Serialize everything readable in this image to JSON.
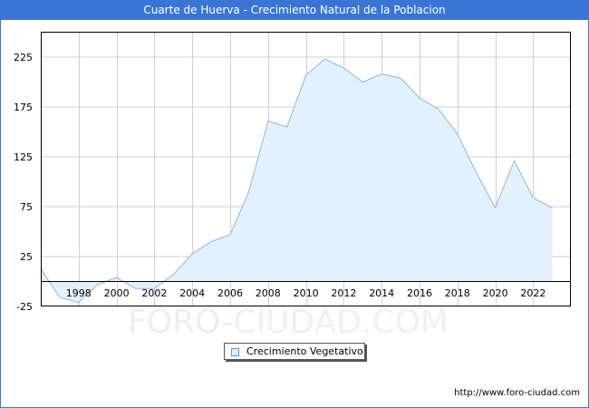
{
  "header": {
    "title": "Cuarte de Huerva - Crecimiento Natural de la Poblacion"
  },
  "legend": {
    "label": "Crecimiento Vegetativo"
  },
  "source": {
    "url_text": "http://www.foro-ciudad.com"
  },
  "watermark": {
    "part1": "FORO-",
    "part2": "CIUDAD.COM"
  },
  "colors": {
    "header_bg": "#3a75d6",
    "area_fill": "#e3f0fd",
    "line": "#8fb5e8",
    "grid": "#d0d0d0",
    "axis": "#000000"
  },
  "chart_data": {
    "type": "area",
    "title": "Cuarte de Huerva - Crecimiento Natural de la Poblacion",
    "xlabel": "",
    "ylabel": "",
    "x": [
      1996,
      1997,
      1998,
      1999,
      2000,
      2001,
      2002,
      2003,
      2004,
      2005,
      2006,
      2007,
      2008,
      2009,
      2010,
      2011,
      2012,
      2013,
      2014,
      2015,
      2016,
      2017,
      2018,
      2019,
      2020,
      2021,
      2022,
      2023
    ],
    "series": [
      {
        "name": "Crecimiento Vegetativo",
        "values": [
          13,
          -16,
          -21,
          -3,
          4,
          -7,
          -7,
          7,
          28,
          40,
          47,
          91,
          161,
          155,
          207,
          223,
          214,
          200,
          208,
          204,
          184,
          173,
          148,
          109,
          74,
          121,
          84,
          74
        ]
      }
    ],
    "x_tick_labels": [
      "1998",
      "2000",
      "2002",
      "2004",
      "2006",
      "2008",
      "2010",
      "2012",
      "2014",
      "2016",
      "2018",
      "2020",
      "2022"
    ],
    "y_tick_labels": [
      "-25",
      "25",
      "75",
      "125",
      "175",
      "225"
    ],
    "y_ticks": [
      -25,
      25,
      75,
      125,
      175,
      225
    ],
    "ylim": [
      -25,
      250
    ],
    "xlim": [
      1996,
      2026
    ],
    "grid": true,
    "legend_position": "bottom-center"
  }
}
